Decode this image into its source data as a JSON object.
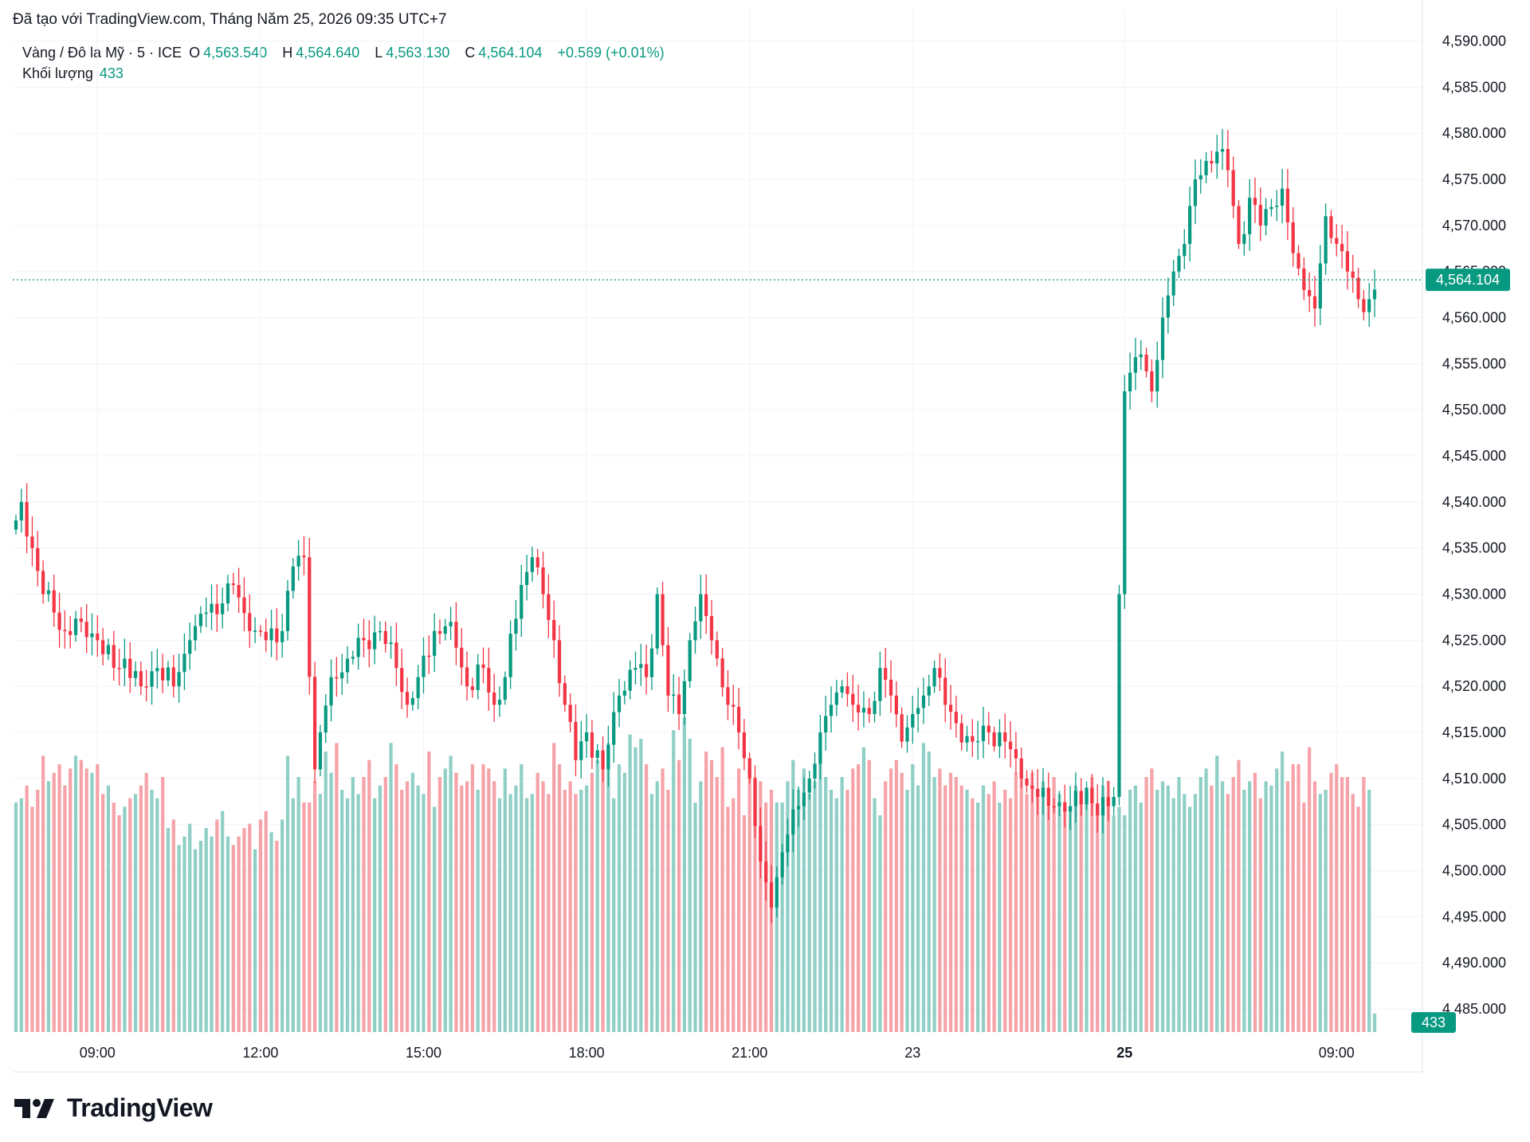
{
  "header": {
    "attribution": "Đã tạo với TradingView.com, Tháng Năm 25, 2026 09:35 UTC+7"
  },
  "legend": {
    "symbol": "Vàng / Đô la Mỹ · 5 · ICE",
    "o_label": "O",
    "o_value": "4,563.540",
    "h_label": "H",
    "h_value": "4,564.640",
    "l_label": "L",
    "l_value": "4,563.130",
    "c_label": "C",
    "c_value": "4,564.104",
    "change": "+0.569 (+0.01%)",
    "volume_label": "Khối lượng",
    "volume_value": "433"
  },
  "colors": {
    "up": "#089981",
    "down": "#F23645",
    "up_volume": "#8FCFC6",
    "down_volume": "#F5A3A8",
    "grid": "#F0F3FA",
    "text": "#131722"
  },
  "brand": {
    "name": "TradingView",
    "logo_icon": "tradingview-logo-icon"
  },
  "chart_data": {
    "type": "candlestick",
    "interval": "5 min",
    "y_axis": {
      "ylim": [
        4482.5,
        4591
      ],
      "ticks": [
        "4,590.000",
        "4,585.000",
        "4,580.000",
        "4,575.000",
        "4,570.000",
        "4,565.000",
        "4,560.000",
        "4,555.000",
        "4,550.000",
        "4,545.000",
        "4,540.000",
        "4,535.000",
        "4,530.000",
        "4,525.000",
        "4,520.000",
        "4,515.000",
        "4,510.000",
        "4,505.000",
        "4,500.000",
        "4,495.000",
        "4,490.000",
        "4,485.000"
      ],
      "tick_values": [
        4590,
        4585,
        4580,
        4575,
        4570,
        4565,
        4560,
        4555,
        4550,
        4545,
        4540,
        4535,
        4530,
        4525,
        4520,
        4515,
        4510,
        4505,
        4500,
        4495,
        4490,
        4485
      ]
    },
    "x_axis": {
      "ticks": [
        "09:00",
        "12:00",
        "15:00",
        "18:00",
        "21:00",
        "23",
        "25",
        "09:00"
      ],
      "tick_bar_index": [
        15,
        45,
        75,
        105,
        135,
        165,
        204,
        243
      ]
    },
    "last_price": {
      "value": 4564.104,
      "label": "4,564.104"
    },
    "last_volume": {
      "value": 433,
      "label": "433"
    },
    "volume_scale_max": 6000,
    "keyframes": [
      [
        0,
        4538
      ],
      [
        1,
        4540
      ],
      [
        3,
        4535
      ],
      [
        5,
        4530
      ],
      [
        7,
        4528
      ],
      [
        9,
        4526
      ],
      [
        12,
        4527
      ],
      [
        15,
        4525
      ],
      [
        18,
        4522
      ],
      [
        20,
        4523
      ],
      [
        23,
        4520
      ],
      [
        26,
        4522
      ],
      [
        29,
        4520
      ],
      [
        32,
        4525
      ],
      [
        35,
        4528
      ],
      [
        38,
        4529
      ],
      [
        40,
        4531
      ],
      [
        43,
        4526
      ],
      [
        46,
        4525
      ],
      [
        49,
        4526
      ],
      [
        51,
        4533
      ],
      [
        53,
        4534
      ],
      [
        55,
        4511
      ],
      [
        56,
        4515
      ],
      [
        58,
        4521
      ],
      [
        61,
        4523
      ],
      [
        64,
        4525
      ],
      [
        67,
        4526
      ],
      [
        70,
        4522
      ],
      [
        72,
        4518
      ],
      [
        74,
        4521
      ],
      [
        77,
        4526
      ],
      [
        80,
        4527
      ],
      [
        83,
        4520
      ],
      [
        86,
        4522
      ],
      [
        88,
        4518
      ],
      [
        90,
        4521
      ],
      [
        93,
        4531
      ],
      [
        95,
        4534
      ],
      [
        97,
        4530
      ],
      [
        99,
        4525
      ],
      [
        101,
        4518
      ],
      [
        103,
        4512
      ],
      [
        105,
        4515
      ],
      [
        108,
        4511
      ],
      [
        111,
        4519
      ],
      [
        114,
        4522
      ],
      [
        116,
        4521
      ],
      [
        118,
        4530
      ],
      [
        120,
        4519
      ],
      [
        122,
        4517
      ],
      [
        124,
        4525
      ],
      [
        126,
        4530
      ],
      [
        128,
        4525
      ],
      [
        131,
        4518
      ],
      [
        133,
        4515
      ],
      [
        135,
        4510
      ],
      [
        137,
        4501
      ],
      [
        139,
        4496
      ],
      [
        141,
        4502
      ],
      [
        144,
        4507
      ],
      [
        146,
        4510
      ],
      [
        148,
        4515
      ],
      [
        150,
        4518
      ],
      [
        152,
        4520
      ],
      [
        154,
        4518
      ],
      [
        157,
        4517
      ],
      [
        159,
        4522
      ],
      [
        161,
        4519
      ],
      [
        163,
        4514
      ],
      [
        165,
        4517
      ],
      [
        167,
        4519
      ],
      [
        169,
        4522
      ],
      [
        171,
        4518
      ],
      [
        173,
        4516
      ],
      [
        176,
        4514
      ],
      [
        179,
        4515
      ],
      [
        182,
        4514
      ],
      [
        185,
        4510
      ],
      [
        188,
        4508
      ],
      [
        191,
        4507
      ],
      [
        194,
        4507
      ],
      [
        197,
        4509
      ],
      [
        199,
        4506
      ],
      [
        201,
        4507
      ],
      [
        202,
        4508
      ],
      [
        203,
        4530
      ],
      [
        204,
        4552
      ],
      [
        207,
        4556
      ],
      [
        209,
        4552
      ],
      [
        211,
        4560
      ],
      [
        213,
        4565
      ],
      [
        215,
        4568
      ],
      [
        217,
        4575
      ],
      [
        219,
        4577
      ],
      [
        221,
        4578
      ],
      [
        223,
        4576
      ],
      [
        225,
        4568
      ],
      [
        227,
        4573
      ],
      [
        229,
        4570
      ],
      [
        231,
        4572
      ],
      [
        233,
        4574
      ],
      [
        235,
        4567
      ],
      [
        237,
        4563
      ],
      [
        239,
        4561
      ],
      [
        241,
        4571
      ],
      [
        243,
        4568
      ],
      [
        245,
        4565
      ],
      [
        247,
        4562
      ],
      [
        249,
        4562
      ],
      [
        251,
        4564.104
      ]
    ],
    "volumes": [
      5400,
      5500,
      5800,
      5300,
      5700,
      6500,
      5900,
      6100,
      6300,
      5800,
      6200,
      6500,
      6400,
      6200,
      6100,
      6300,
      5600,
      5800,
      5400,
      5100,
      5300,
      5500,
      5600,
      5800,
      6100,
      5700,
      5500,
      6000,
      4800,
      5000,
      4400,
      4600,
      4900,
      4300,
      4500,
      4800,
      4600,
      5000,
      5200,
      4600,
      4400,
      4600,
      4800,
      4900,
      4300,
      5000,
      5200,
      4700,
      4500,
      5000,
      6500,
      5500,
      6000,
      5400,
      5400,
      5900,
      5600,
      6600,
      6100,
      6800,
      5700,
      5500,
      6000,
      5600,
      6000,
      6400,
      5500,
      5800,
      6000,
      6800,
      6300,
      5700,
      5900,
      6100,
      5800,
      5600,
      6600,
      5300,
      6000,
      6200,
      6500,
      6100,
      5800,
      5900,
      6300,
      5700,
      6300,
      6200,
      5900,
      5500,
      6200,
      5600,
      5800,
      6300,
      5500,
      5600,
      6100,
      5900,
      5600,
      6800,
      6300,
      5700,
      5900,
      5600,
      5700,
      5800,
      6100,
      6400,
      6600,
      6800,
      5500,
      6300,
      6100,
      7000,
      6700,
      6900,
      6300,
      5600,
      5900,
      6200,
      5700,
      7100,
      6400,
      7400,
      6900,
      5400,
      5900,
      6600,
      6400,
      6000,
      6700,
      5300,
      5500,
      6200,
      5100,
      6400,
      6000,
      5900,
      5400,
      5700,
      5400,
      5400,
      5900,
      6400,
      5700,
      6200,
      5600,
      5900,
      6400,
      6000,
      5700,
      5500,
      6000,
      5700,
      6200,
      6300,
      6700,
      6400,
      5500,
      5100,
      5900,
      6200,
      6400,
      6100,
      5700,
      6300,
      5800,
      6800,
      6600,
      6000,
      6200,
      5800,
      6100,
      6000,
      5800,
      5700,
      5500,
      5400,
      5800,
      5600,
      5900,
      5400,
      5700,
      5500,
      6100,
      6200,
      5600,
      6100,
      5700,
      5900,
      5300,
      6000,
      5600,
      5300,
      5300,
      5800,
      5500,
      5600,
      6000,
      5300,
      5800,
      5900,
      5100,
      5300,
      5100,
      5700,
      5800,
      5400,
      6000,
      6200,
      5700,
      5900,
      5800,
      5500,
      6000,
      5600,
      5300,
      5600,
      6000,
      6200,
      5800,
      6500,
      5900,
      5600,
      6000,
      6400,
      5700,
      5900,
      6100,
      5500,
      5900,
      5800,
      6200,
      6600,
      5900,
      6300,
      6300,
      5400,
      6700,
      5900,
      5600,
      5700,
      6100,
      6300,
      6000,
      6000,
      5600,
      5300,
      6000,
      5700,
      433
    ]
  }
}
